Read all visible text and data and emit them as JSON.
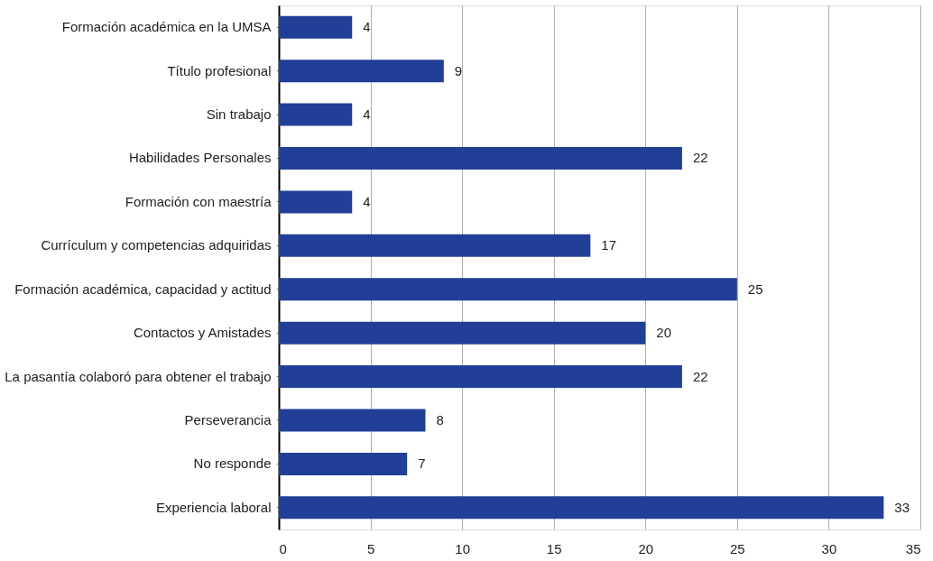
{
  "chart_data": {
    "type": "bar",
    "orientation": "horizontal",
    "categories": [
      "Formación académica en la UMSA",
      "Título profesional",
      "Sin trabajo",
      "Habilidades Personales",
      "Formación con maestría",
      "Currículum y competencias adquiridas",
      "Formación académica, capacidad y actitud",
      "Contactos y Amistades",
      "La pasantía colaboró para obtener el trabajo",
      "Perseverancia",
      "No responde",
      "Experiencia laboral"
    ],
    "values": [
      4,
      9,
      4,
      22,
      4,
      17,
      25,
      20,
      22,
      8,
      7,
      33
    ],
    "color": "#213f96",
    "xlim": [
      0,
      35
    ],
    "xticks": [
      0,
      5,
      10,
      15,
      20,
      25,
      30,
      35
    ],
    "grid": "x",
    "data_labels": true
  }
}
